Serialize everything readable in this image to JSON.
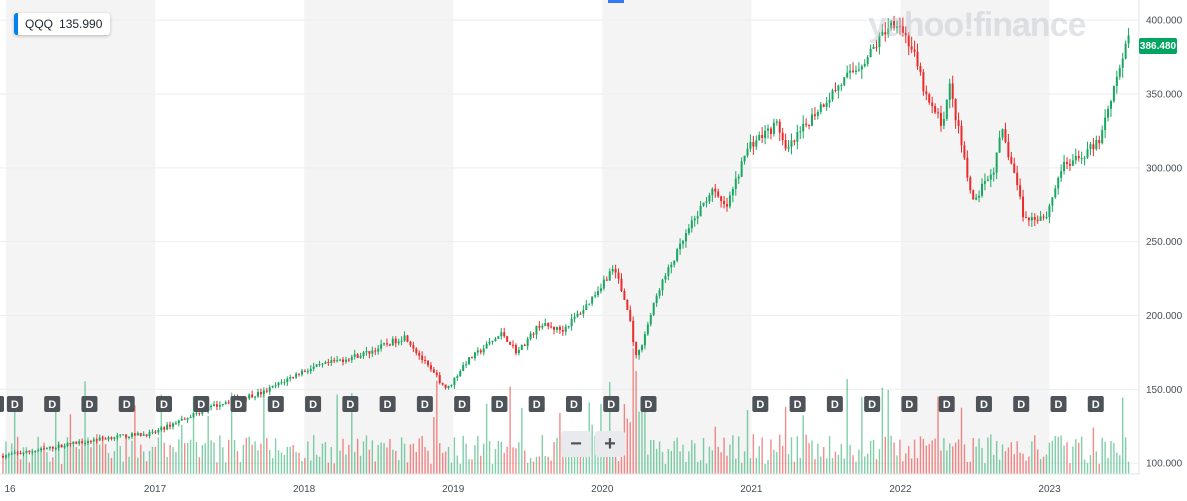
{
  "legend": {
    "symbol": "QQQ",
    "value": "135.990"
  },
  "watermark": "yahoo!finance",
  "zoom": {
    "minus": "−",
    "plus": "+"
  },
  "last_price_label": "386.480",
  "colors": {
    "up": "#17a760",
    "down": "#eb2a2a",
    "band": "#f4f4f4",
    "badge": "#4d5359",
    "accent": "#0081f2"
  },
  "chart_data": {
    "type": "candlestick",
    "title": "",
    "xlabel": "",
    "ylabel": "",
    "ylim": [
      93,
      414
    ],
    "x_ticks": [
      "16",
      "2017",
      "2018",
      "2019",
      "2020",
      "2021",
      "2022",
      "2023"
    ],
    "y_ticks": [
      "100.000",
      "150.000",
      "200.000",
      "250.000",
      "300.000",
      "350.000",
      "400.000"
    ],
    "y_tick_values": [
      100,
      150,
      200,
      250,
      300,
      350,
      400
    ],
    "last_price": 386.48,
    "dividend_marker": "D",
    "dividend_markers_count": 28,
    "price_path": [
      [
        2016.0,
        105
      ],
      [
        2016.25,
        109
      ],
      [
        2016.5,
        114
      ],
      [
        2016.75,
        118
      ],
      [
        2017.0,
        120
      ],
      [
        2017.25,
        132
      ],
      [
        2017.5,
        142
      ],
      [
        2017.75,
        148
      ],
      [
        2018.0,
        162
      ],
      [
        2018.2,
        168
      ],
      [
        2018.45,
        175
      ],
      [
        2018.7,
        186
      ],
      [
        2018.85,
        165
      ],
      [
        2018.98,
        150
      ],
      [
        2019.1,
        168
      ],
      [
        2019.35,
        188
      ],
      [
        2019.45,
        175
      ],
      [
        2019.6,
        194
      ],
      [
        2019.75,
        190
      ],
      [
        2019.9,
        205
      ],
      [
        2020.1,
        233
      ],
      [
        2020.2,
        200
      ],
      [
        2020.25,
        170
      ],
      [
        2020.4,
        218
      ],
      [
        2020.6,
        258
      ],
      [
        2020.75,
        285
      ],
      [
        2020.85,
        272
      ],
      [
        2021.0,
        315
      ],
      [
        2021.2,
        330
      ],
      [
        2021.25,
        310
      ],
      [
        2021.45,
        338
      ],
      [
        2021.6,
        355
      ],
      [
        2021.8,
        375
      ],
      [
        2021.95,
        398
      ],
      [
        2022.0,
        400
      ],
      [
        2022.1,
        380
      ],
      [
        2022.2,
        345
      ],
      [
        2022.3,
        330
      ],
      [
        2022.35,
        355
      ],
      [
        2022.45,
        305
      ],
      [
        2022.5,
        275
      ],
      [
        2022.65,
        300
      ],
      [
        2022.7,
        325
      ],
      [
        2022.8,
        290
      ],
      [
        2022.85,
        265
      ],
      [
        2023.0,
        268
      ],
      [
        2023.1,
        300
      ],
      [
        2023.2,
        305
      ],
      [
        2023.35,
        318
      ],
      [
        2023.45,
        355
      ],
      [
        2023.5,
        372
      ],
      [
        2023.55,
        386.48
      ]
    ],
    "x_range": [
      2015.98,
      2023.62
    ]
  }
}
